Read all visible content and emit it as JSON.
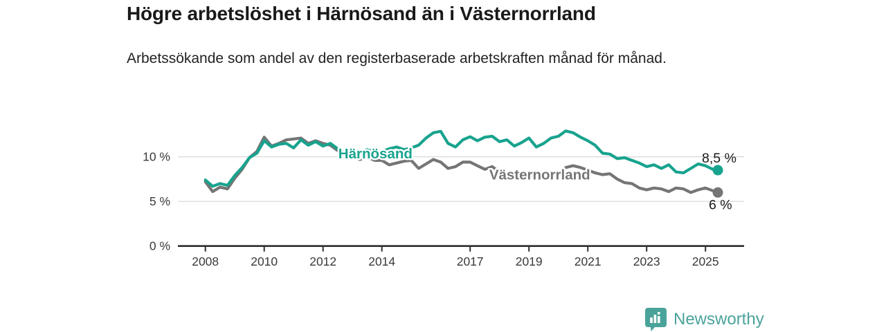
{
  "header": {
    "title": "Högre arbetslöshet i Härnösand än i Västernorrland",
    "subtitle": "Arbetssökande som andel av den registerbaserade arbetskraften månad för månad."
  },
  "chart_data": {
    "type": "line",
    "unit": "%",
    "grid": "horizontal",
    "x_axis": {
      "range": [
        2007.07,
        2026.3
      ],
      "ticks": [
        2008,
        2010,
        2012,
        2014,
        2017,
        2019,
        2021,
        2023,
        2025
      ],
      "tick_labels": [
        "2008",
        "2010",
        "2012",
        "2014",
        "2017",
        "2019",
        "2021",
        "2023",
        "2025"
      ]
    },
    "y_axis": {
      "range": [
        0,
        14.4
      ],
      "ticks": [
        0,
        5,
        10
      ],
      "tick_labels": [
        "0 %",
        "5 %",
        "10 %"
      ]
    },
    "series": [
      {
        "name": "Västernorrland",
        "color": "#757575",
        "end_value": 6,
        "end_label": "6 %",
        "label_pos": [
          2017.65,
          8.0
        ],
        "end_label_offset": [
          -13,
          24
        ],
        "points": [
          [
            2008.0,
            7.2
          ],
          [
            2008.25,
            6.1
          ],
          [
            2008.5,
            6.6
          ],
          [
            2008.75,
            6.4
          ],
          [
            2009.0,
            7.6
          ],
          [
            2009.25,
            8.6
          ],
          [
            2009.5,
            9.9
          ],
          [
            2009.75,
            10.6
          ],
          [
            2010.0,
            12.2
          ],
          [
            2010.25,
            11.2
          ],
          [
            2010.5,
            11.5
          ],
          [
            2010.75,
            11.9
          ],
          [
            2011.0,
            12.0
          ],
          [
            2011.25,
            12.1
          ],
          [
            2011.5,
            11.5
          ],
          [
            2011.75,
            11.8
          ],
          [
            2012.0,
            11.5
          ],
          [
            2012.25,
            11.3
          ],
          [
            2012.5,
            10.7
          ],
          [
            2012.75,
            10.2
          ],
          [
            2013.0,
            10.0
          ],
          [
            2013.25,
            9.7
          ],
          [
            2013.5,
            10.0
          ],
          [
            2013.75,
            9.6
          ],
          [
            2014.0,
            9.6
          ],
          [
            2014.25,
            9.1
          ],
          [
            2014.5,
            9.3
          ],
          [
            2014.75,
            9.5
          ],
          [
            2015.0,
            9.6
          ],
          [
            2015.25,
            8.7
          ],
          [
            2015.5,
            9.2
          ],
          [
            2015.75,
            9.7
          ],
          [
            2016.0,
            9.4
          ],
          [
            2016.25,
            8.7
          ],
          [
            2016.5,
            8.9
          ],
          [
            2016.75,
            9.4
          ],
          [
            2017.0,
            9.4
          ],
          [
            2017.25,
            9.0
          ],
          [
            2017.5,
            8.6
          ],
          [
            2017.75,
            8.9
          ],
          [
            2018.0,
            8.3
          ],
          [
            2018.25,
            7.9
          ],
          [
            2018.5,
            7.6
          ],
          [
            2018.75,
            7.7
          ],
          [
            2019.0,
            7.9
          ],
          [
            2019.25,
            7.6
          ],
          [
            2019.5,
            7.5
          ],
          [
            2019.75,
            7.8
          ],
          [
            2020.0,
            7.9
          ],
          [
            2020.25,
            8.8
          ],
          [
            2020.5,
            9.0
          ],
          [
            2020.75,
            8.8
          ],
          [
            2021.0,
            8.5
          ],
          [
            2021.25,
            8.2
          ],
          [
            2021.5,
            8.0
          ],
          [
            2021.75,
            8.1
          ],
          [
            2022.0,
            7.5
          ],
          [
            2022.25,
            7.1
          ],
          [
            2022.5,
            7.0
          ],
          [
            2022.75,
            6.5
          ],
          [
            2023.0,
            6.3
          ],
          [
            2023.25,
            6.5
          ],
          [
            2023.5,
            6.4
          ],
          [
            2023.75,
            6.1
          ],
          [
            2024.0,
            6.5
          ],
          [
            2024.25,
            6.4
          ],
          [
            2024.5,
            6.0
          ],
          [
            2024.75,
            6.3
          ],
          [
            2025.0,
            6.5
          ],
          [
            2025.25,
            6.2
          ],
          [
            2025.42,
            6.0
          ]
        ]
      },
      {
        "name": "Härnösand",
        "color": "#18a38e",
        "end_value": 8.5,
        "end_label": "8,5 %",
        "label_pos": [
          2012.52,
          10.35
        ],
        "end_label_offset": [
          -23,
          -11
        ],
        "points": [
          [
            2008.0,
            7.4
          ],
          [
            2008.25,
            6.7
          ],
          [
            2008.5,
            7.0
          ],
          [
            2008.75,
            6.8
          ],
          [
            2009.0,
            7.9
          ],
          [
            2009.25,
            8.8
          ],
          [
            2009.5,
            9.9
          ],
          [
            2009.75,
            10.4
          ],
          [
            2010.0,
            11.8
          ],
          [
            2010.25,
            11.1
          ],
          [
            2010.5,
            11.4
          ],
          [
            2010.75,
            11.5
          ],
          [
            2011.0,
            11.0
          ],
          [
            2011.25,
            11.9
          ],
          [
            2011.5,
            11.3
          ],
          [
            2011.75,
            11.7
          ],
          [
            2012.0,
            11.2
          ],
          [
            2012.25,
            11.5
          ],
          [
            2012.5,
            10.9
          ],
          [
            2012.75,
            10.4
          ],
          [
            2013.0,
            10.2
          ],
          [
            2013.25,
            10.5
          ],
          [
            2013.5,
            10.8
          ],
          [
            2013.75,
            10.5
          ],
          [
            2014.0,
            10.6
          ],
          [
            2014.25,
            10.9
          ],
          [
            2014.5,
            11.1
          ],
          [
            2014.75,
            10.8
          ],
          [
            2015.0,
            11.0
          ],
          [
            2015.25,
            11.3
          ],
          [
            2015.5,
            12.1
          ],
          [
            2015.75,
            12.7
          ],
          [
            2016.0,
            12.85
          ],
          [
            2016.25,
            11.5
          ],
          [
            2016.5,
            11.1
          ],
          [
            2016.75,
            11.9
          ],
          [
            2017.0,
            12.25
          ],
          [
            2017.25,
            11.8
          ],
          [
            2017.5,
            12.2
          ],
          [
            2017.75,
            12.3
          ],
          [
            2018.0,
            11.7
          ],
          [
            2018.25,
            11.9
          ],
          [
            2018.5,
            11.2
          ],
          [
            2018.75,
            11.6
          ],
          [
            2019.0,
            12.1
          ],
          [
            2019.25,
            11.1
          ],
          [
            2019.5,
            11.5
          ],
          [
            2019.75,
            12.1
          ],
          [
            2020.0,
            12.3
          ],
          [
            2020.25,
            12.9
          ],
          [
            2020.5,
            12.7
          ],
          [
            2020.75,
            12.2
          ],
          [
            2021.0,
            11.8
          ],
          [
            2021.25,
            11.3
          ],
          [
            2021.5,
            10.4
          ],
          [
            2021.75,
            10.3
          ],
          [
            2022.0,
            9.8
          ],
          [
            2022.25,
            9.9
          ],
          [
            2022.5,
            9.6
          ],
          [
            2022.75,
            9.3
          ],
          [
            2023.0,
            8.9
          ],
          [
            2023.25,
            9.1
          ],
          [
            2023.5,
            8.7
          ],
          [
            2023.75,
            9.1
          ],
          [
            2024.0,
            8.3
          ],
          [
            2024.25,
            8.2
          ],
          [
            2024.5,
            8.7
          ],
          [
            2024.75,
            9.2
          ],
          [
            2025.0,
            9.0
          ],
          [
            2025.25,
            8.6
          ],
          [
            2025.42,
            8.5
          ]
        ]
      }
    ]
  },
  "branding": {
    "logo_text": "Newsworthy",
    "logo_icon": "bar-chart-bubble-icon",
    "color": "#4aa39a"
  }
}
